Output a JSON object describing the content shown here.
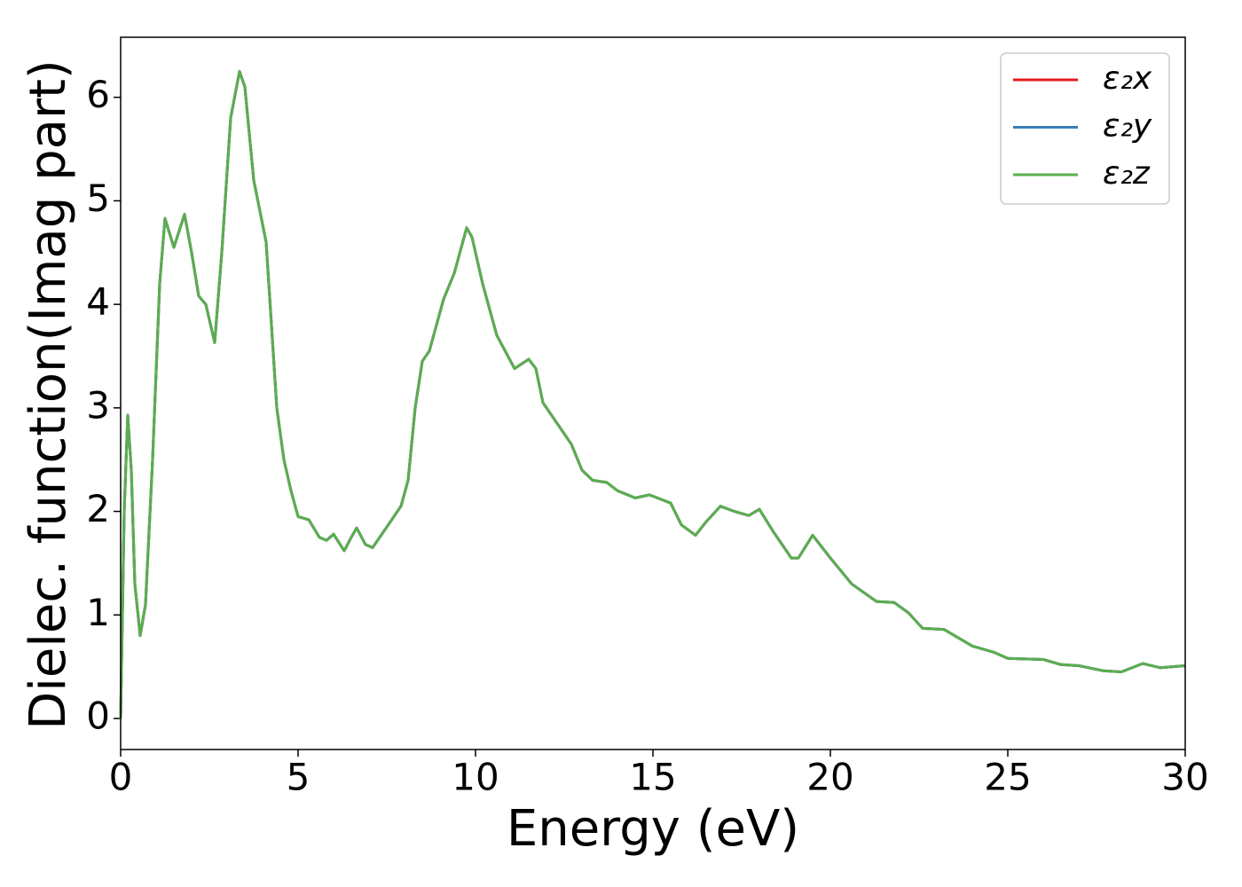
{
  "chart_data": {
    "type": "line",
    "xlabel": "Energy (eV)",
    "ylabel": "Dielec. function(Imag part)",
    "x": [
      0,
      0.1,
      0.2,
      0.3,
      0.4,
      0.55,
      0.7,
      0.9,
      1.1,
      1.25,
      1.5,
      1.8,
      2.0,
      2.2,
      2.4,
      2.65,
      2.85,
      3.1,
      3.35,
      3.5,
      3.75,
      4.1,
      4.4,
      4.6,
      4.8,
      5.0,
      5.3,
      5.6,
      5.8,
      6.0,
      6.3,
      6.5,
      6.65,
      6.9,
      7.1,
      7.5,
      7.9,
      8.1,
      8.3,
      8.5,
      8.7,
      8.9,
      9.1,
      9.4,
      9.75,
      9.9,
      10.2,
      10.6,
      11.1,
      11.5,
      11.7,
      11.9,
      12.2,
      12.7,
      13.0,
      13.3,
      13.7,
      14.0,
      14.5,
      14.9,
      15.2,
      15.5,
      15.8,
      16.2,
      16.5,
      16.9,
      17.3,
      17.7,
      18.0,
      18.4,
      18.9,
      19.1,
      19.5,
      20.0,
      20.6,
      21.3,
      21.8,
      22.2,
      22.6,
      23.2,
      24.0,
      24.6,
      25.0,
      26.0,
      26.5,
      27.0,
      27.7,
      28.2,
      28.8,
      29.3,
      30
    ],
    "series": [
      {
        "name": "ε₂x",
        "color": "#e41a1c",
        "values": [
          0,
          2.0,
          2.93,
          2.4,
          1.3,
          0.8,
          1.1,
          2.5,
          4.2,
          4.83,
          4.55,
          4.87,
          4.5,
          4.08,
          4.0,
          3.63,
          4.5,
          5.8,
          6.25,
          6.1,
          5.2,
          4.6,
          3.0,
          2.5,
          2.2,
          1.95,
          1.92,
          1.75,
          1.72,
          1.78,
          1.62,
          1.75,
          1.84,
          1.68,
          1.65,
          1.85,
          2.05,
          2.3,
          3.0,
          3.45,
          3.55,
          3.8,
          4.05,
          4.3,
          4.74,
          4.65,
          4.2,
          3.7,
          3.38,
          3.47,
          3.38,
          3.05,
          2.9,
          2.65,
          2.4,
          2.3,
          2.28,
          2.2,
          2.13,
          2.16,
          2.12,
          2.08,
          1.87,
          1.77,
          1.9,
          2.05,
          2.0,
          1.96,
          2.02,
          1.8,
          1.55,
          1.55,
          1.77,
          1.55,
          1.3,
          1.13,
          1.12,
          1.02,
          0.87,
          0.86,
          0.7,
          0.64,
          0.58,
          0.57,
          0.52,
          0.51,
          0.46,
          0.45,
          0.53,
          0.49,
          0.51
        ]
      },
      {
        "name": "ε₂y",
        "color": "#377eb8",
        "values": [
          0,
          2.0,
          2.93,
          2.4,
          1.3,
          0.8,
          1.1,
          2.5,
          4.2,
          4.83,
          4.55,
          4.87,
          4.5,
          4.08,
          4.0,
          3.63,
          4.5,
          5.8,
          6.25,
          6.1,
          5.2,
          4.6,
          3.0,
          2.5,
          2.2,
          1.95,
          1.92,
          1.75,
          1.72,
          1.78,
          1.62,
          1.75,
          1.84,
          1.68,
          1.65,
          1.85,
          2.05,
          2.3,
          3.0,
          3.45,
          3.55,
          3.8,
          4.05,
          4.3,
          4.74,
          4.65,
          4.2,
          3.7,
          3.38,
          3.47,
          3.38,
          3.05,
          2.9,
          2.65,
          2.4,
          2.3,
          2.28,
          2.2,
          2.13,
          2.16,
          2.12,
          2.08,
          1.87,
          1.77,
          1.9,
          2.05,
          2.0,
          1.96,
          2.02,
          1.8,
          1.55,
          1.55,
          1.77,
          1.55,
          1.3,
          1.13,
          1.12,
          1.02,
          0.87,
          0.86,
          0.7,
          0.64,
          0.58,
          0.57,
          0.52,
          0.51,
          0.46,
          0.45,
          0.53,
          0.49,
          0.51
        ]
      },
      {
        "name": "ε₂z",
        "color": "#5aae4f",
        "values": [
          0,
          2.0,
          2.93,
          2.4,
          1.3,
          0.8,
          1.1,
          2.5,
          4.2,
          4.83,
          4.55,
          4.87,
          4.5,
          4.08,
          4.0,
          3.63,
          4.5,
          5.8,
          6.25,
          6.1,
          5.2,
          4.6,
          3.0,
          2.5,
          2.2,
          1.95,
          1.92,
          1.75,
          1.72,
          1.78,
          1.62,
          1.75,
          1.84,
          1.68,
          1.65,
          1.85,
          2.05,
          2.3,
          3.0,
          3.45,
          3.55,
          3.8,
          4.05,
          4.3,
          4.74,
          4.65,
          4.2,
          3.7,
          3.38,
          3.47,
          3.38,
          3.05,
          2.9,
          2.65,
          2.4,
          2.3,
          2.28,
          2.2,
          2.13,
          2.16,
          2.12,
          2.08,
          1.87,
          1.77,
          1.9,
          2.05,
          2.0,
          1.96,
          2.02,
          1.8,
          1.55,
          1.55,
          1.77,
          1.55,
          1.3,
          1.13,
          1.12,
          1.02,
          0.87,
          0.86,
          0.7,
          0.64,
          0.58,
          0.57,
          0.52,
          0.51,
          0.46,
          0.45,
          0.53,
          0.49,
          0.51
        ]
      }
    ],
    "xlim": [
      0,
      30
    ],
    "xticks": [
      0,
      5,
      10,
      15,
      20,
      25,
      30
    ],
    "ylim": [
      -0.3,
      6.58
    ],
    "yticks": [
      0,
      1,
      2,
      3,
      4,
      5,
      6
    ],
    "legend": "upper right",
    "grid": false
  }
}
